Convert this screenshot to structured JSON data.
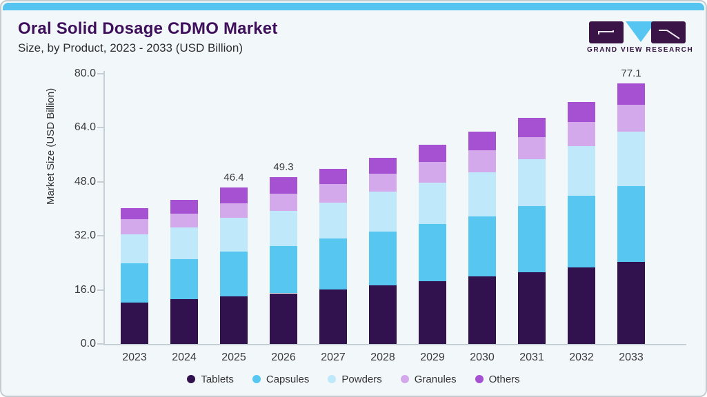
{
  "header": {
    "title": "Oral Solid Dosage CDMO Market",
    "subtitle": "Size, by Product, 2023 - 2033 (USD Billion)"
  },
  "logo": {
    "text": "GRAND VIEW RESEARCH",
    "block_color": "#3A1446",
    "triangle_color": "#56C5F2"
  },
  "colors": {
    "accent_bar": "#55C4F1",
    "title": "#3E0F5B",
    "background": "#F2F7FA"
  },
  "chart_data": {
    "type": "bar",
    "stacked": true,
    "title": "Oral Solid Dosage CDMO Market Size, by Product, 2023 - 2033 (USD Billion)",
    "xlabel": "",
    "ylabel": "Market Size (USD Billion)",
    "ylim": [
      0,
      80
    ],
    "grid": false,
    "legend_position": "bottom",
    "categories": [
      "2023",
      "2024",
      "2025",
      "2026",
      "2027",
      "2028",
      "2029",
      "2030",
      "2031",
      "2032",
      "2033"
    ],
    "series": [
      {
        "name": "Tablets",
        "color": "#32124E",
        "values": [
          12.2,
          13.2,
          14.0,
          15.0,
          16.2,
          17.3,
          18.5,
          19.9,
          21.2,
          22.6,
          24.3
        ]
      },
      {
        "name": "Capsules",
        "color": "#57C7F2",
        "values": [
          11.6,
          11.9,
          13.4,
          14.0,
          15.1,
          15.9,
          17.0,
          17.9,
          19.7,
          21.2,
          22.5
        ]
      },
      {
        "name": "Powders",
        "color": "#BFE8FA",
        "values": [
          8.6,
          9.3,
          10.0,
          10.4,
          10.5,
          11.9,
          12.2,
          13.1,
          13.8,
          14.8,
          16.1
        ]
      },
      {
        "name": "Granules",
        "color": "#D3A9EB",
        "values": [
          4.6,
          4.2,
          4.3,
          5.0,
          5.6,
          5.4,
          6.2,
          6.4,
          6.5,
          7.1,
          7.9
        ]
      },
      {
        "name": "Others",
        "color": "#A551D2",
        "values": [
          3.2,
          4.0,
          4.7,
          4.9,
          4.5,
          4.6,
          5.1,
          5.6,
          5.8,
          6.0,
          6.3
        ]
      }
    ],
    "totals": [
      40.2,
      42.6,
      46.4,
      49.3,
      51.9,
      55.1,
      59.0,
      62.9,
      67.0,
      71.7,
      77.1
    ],
    "annotations": [
      {
        "category": "2025",
        "text": "46.4"
      },
      {
        "category": "2026",
        "text": "49.3"
      },
      {
        "category": "2033",
        "text": "77.1"
      }
    ],
    "yticks": [
      {
        "value": 0,
        "label": "0.0"
      },
      {
        "value": 16,
        "label": "16.0"
      },
      {
        "value": 32,
        "label": "32.0"
      },
      {
        "value": 48,
        "label": "48.0"
      },
      {
        "value": 64,
        "label": "64.0"
      },
      {
        "value": 80,
        "label": "80.0"
      }
    ]
  }
}
